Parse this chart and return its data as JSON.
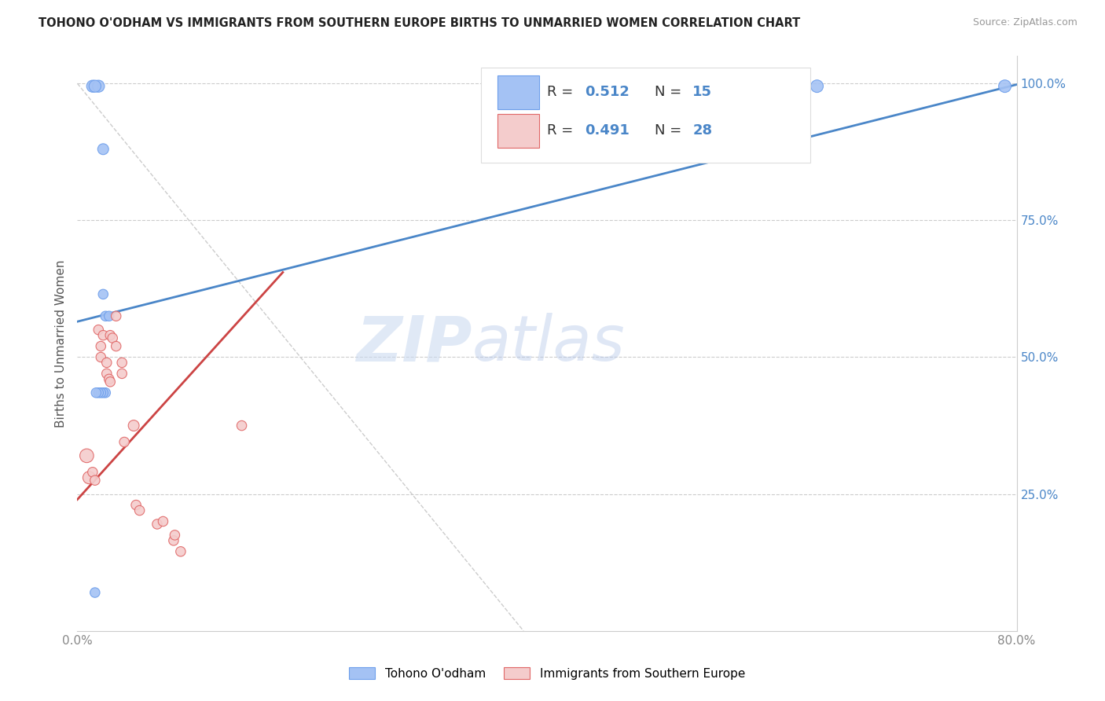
{
  "title": "TOHONO O'ODHAM VS IMMIGRANTS FROM SOUTHERN EUROPE BIRTHS TO UNMARRIED WOMEN CORRELATION CHART",
  "source": "Source: ZipAtlas.com",
  "ylabel": "Births to Unmarried Women",
  "xlim": [
    0.0,
    0.8
  ],
  "ylim": [
    0.0,
    1.05
  ],
  "ytick_values": [
    0.0,
    0.25,
    0.5,
    0.75,
    1.0
  ],
  "xtick_values": [
    0.0,
    0.1,
    0.2,
    0.3,
    0.4,
    0.5,
    0.6,
    0.7,
    0.8
  ],
  "color_blue": "#a4c2f4",
  "color_pink": "#f4cccc",
  "color_blue_edge": "#6d9eeb",
  "color_pink_edge": "#e06666",
  "color_blue_line": "#4a86c8",
  "color_pink_line": "#cc4444",
  "color_blue_text": "#4a86c8",
  "watermark_zip": "ZIP",
  "watermark_atlas": "atlas",
  "blue_points_x": [
    0.013,
    0.018,
    0.022,
    0.015,
    0.022,
    0.024,
    0.027,
    0.024,
    0.022,
    0.02,
    0.018,
    0.016,
    0.015,
    0.63,
    0.79
  ],
  "blue_points_y": [
    0.995,
    0.995,
    0.88,
    0.995,
    0.615,
    0.575,
    0.575,
    0.435,
    0.435,
    0.435,
    0.435,
    0.435,
    0.07,
    0.995,
    0.995
  ],
  "pink_points_x": [
    0.008,
    0.01,
    0.013,
    0.015,
    0.018,
    0.02,
    0.02,
    0.022,
    0.025,
    0.025,
    0.027,
    0.028,
    0.028,
    0.03,
    0.033,
    0.033,
    0.038,
    0.038,
    0.04,
    0.048,
    0.05,
    0.053,
    0.068,
    0.073,
    0.082,
    0.083,
    0.088,
    0.14
  ],
  "pink_points_y": [
    0.32,
    0.28,
    0.29,
    0.275,
    0.55,
    0.52,
    0.5,
    0.54,
    0.49,
    0.47,
    0.46,
    0.455,
    0.54,
    0.535,
    0.575,
    0.52,
    0.49,
    0.47,
    0.345,
    0.375,
    0.23,
    0.22,
    0.195,
    0.2,
    0.165,
    0.175,
    0.145,
    0.375
  ],
  "blue_line_x": [
    0.0,
    0.8
  ],
  "blue_line_y": [
    0.565,
    0.998
  ],
  "pink_line_x": [
    0.0,
    0.175
  ],
  "pink_line_y": [
    0.24,
    0.655
  ],
  "diagonal_line_x": [
    0.0,
    0.38
  ],
  "diagonal_line_y": [
    1.0,
    0.0
  ],
  "blue_point_sizes": [
    120,
    120,
    100,
    120,
    80,
    80,
    80,
    80,
    80,
    80,
    80,
    80,
    80,
    130,
    130
  ],
  "pink_point_sizes": [
    160,
    130,
    80,
    80,
    80,
    80,
    80,
    80,
    80,
    80,
    80,
    80,
    80,
    80,
    80,
    80,
    80,
    80,
    80,
    100,
    80,
    80,
    80,
    80,
    80,
    80,
    80,
    80
  ],
  "legend_r1": "R = 0.512",
  "legend_n1": "N = 15",
  "legend_r2": "R = 0.491",
  "legend_n2": "N = 28",
  "bottom_legend_labels": [
    "Tohono O'odham",
    "Immigrants from Southern Europe"
  ]
}
